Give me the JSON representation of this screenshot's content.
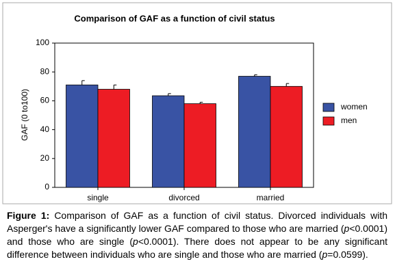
{
  "chart_data": {
    "type": "bar",
    "title": "Comparison of GAF as a function of civil status",
    "y_label": "GAF (0 to100)",
    "categories": [
      "single",
      "divorced",
      "married"
    ],
    "series": [
      {
        "name": "women",
        "color": "#3953a4",
        "values": [
          71,
          63.5,
          77
        ],
        "errors": [
          3,
          1.5,
          1
        ]
      },
      {
        "name": "men",
        "color": "#ed1c24",
        "values": [
          68,
          58,
          70
        ],
        "errors": [
          3,
          1,
          2
        ]
      }
    ],
    "ylim": [
      0,
      100
    ],
    "yticks": [
      0,
      20,
      40,
      60,
      80,
      100
    ],
    "legend": "right"
  },
  "caption": {
    "label": "Figure 1:",
    "parts": [
      "Comparison of GAF as a function of civil status. Divorced individuals with Asperger's have a significantly lower GAF compared to those who are married (",
      "p",
      "<0.0001) and those who are single (",
      "p",
      "<0.0001). There does not appear to be any significant difference between individuals who are single and those who are married (",
      "p",
      "=0.0599)."
    ]
  }
}
